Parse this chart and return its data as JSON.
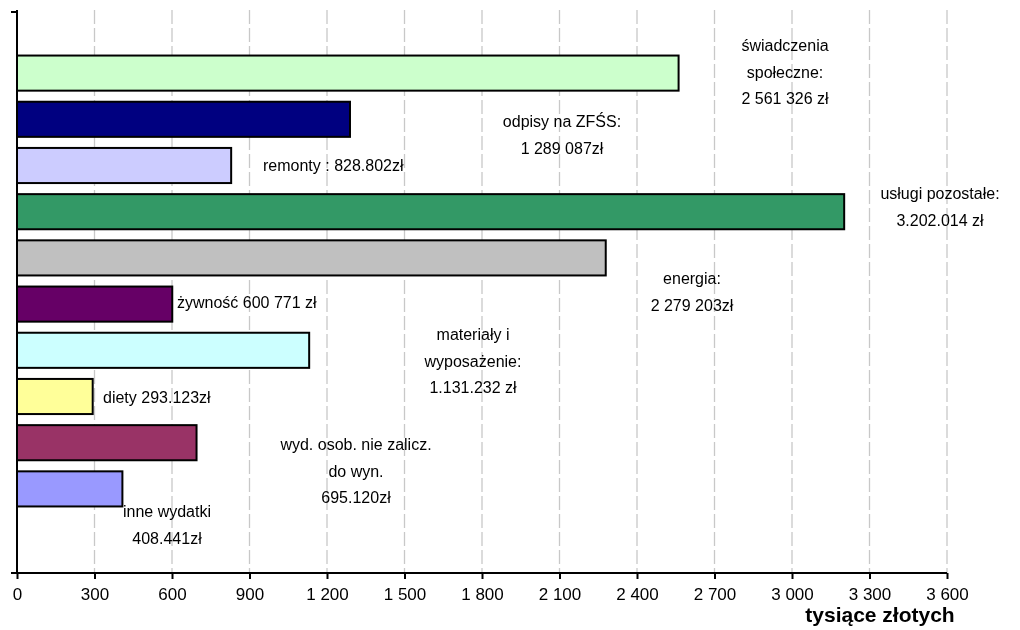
{
  "chart_data": {
    "type": "bar",
    "orientation": "horizontal",
    "xlabel": "tysiące złotych",
    "categories": [
      null,
      null,
      null,
      null,
      null,
      null,
      null,
      null,
      null,
      null
    ],
    "values": [
      2561,
      1289,
      829,
      3202,
      2279,
      601,
      1131,
      293,
      695,
      408
    ],
    "colors": [
      "#ccffcc",
      "#000080",
      "#ccccff",
      "#339966",
      "#c0c0c0",
      "#660066",
      "#ccffff",
      "#ffff99",
      "#993366",
      "#9999ff"
    ],
    "annotations": [
      "świadczenia społeczne: 2 561 326 zł",
      "odpisy na ZFŚS: 1 289 087zł",
      "remonty : 828.802zł",
      "usługi pozostałe: 3.202.014 zł",
      "energia: 2 279 203zł",
      "żywność 600 771 zł",
      "materiały i wyposażenie: 1.131.232 zł",
      "diety 293.123zł",
      "wyd. osob. nie zalicz. do wyn. 695.120zł",
      "inne wydatki 408.441zł"
    ],
    "xlim": [
      0,
      3600
    ],
    "xticks": [
      0,
      {
        "value": 300,
        "label": "300"
      },
      {
        "value": 600,
        "label": "600"
      },
      {
        "value": 900,
        "label": "900"
      },
      {
        "value": 1200,
        "label": "1 200"
      },
      {
        "value": 1500,
        "label": "1 500"
      },
      {
        "value": 1800,
        "label": "1 800"
      },
      {
        "value": 2100,
        "label": "2 100"
      },
      {
        "value": 2400,
        "label": "2 400"
      },
      {
        "value": 2700,
        "label": "2 700"
      },
      {
        "value": 3000,
        "label": "3 000"
      },
      {
        "value": 3300,
        "label": "3 300"
      },
      {
        "value": 3600,
        "label": "3 600"
      }
    ],
    "grid": "x"
  }
}
